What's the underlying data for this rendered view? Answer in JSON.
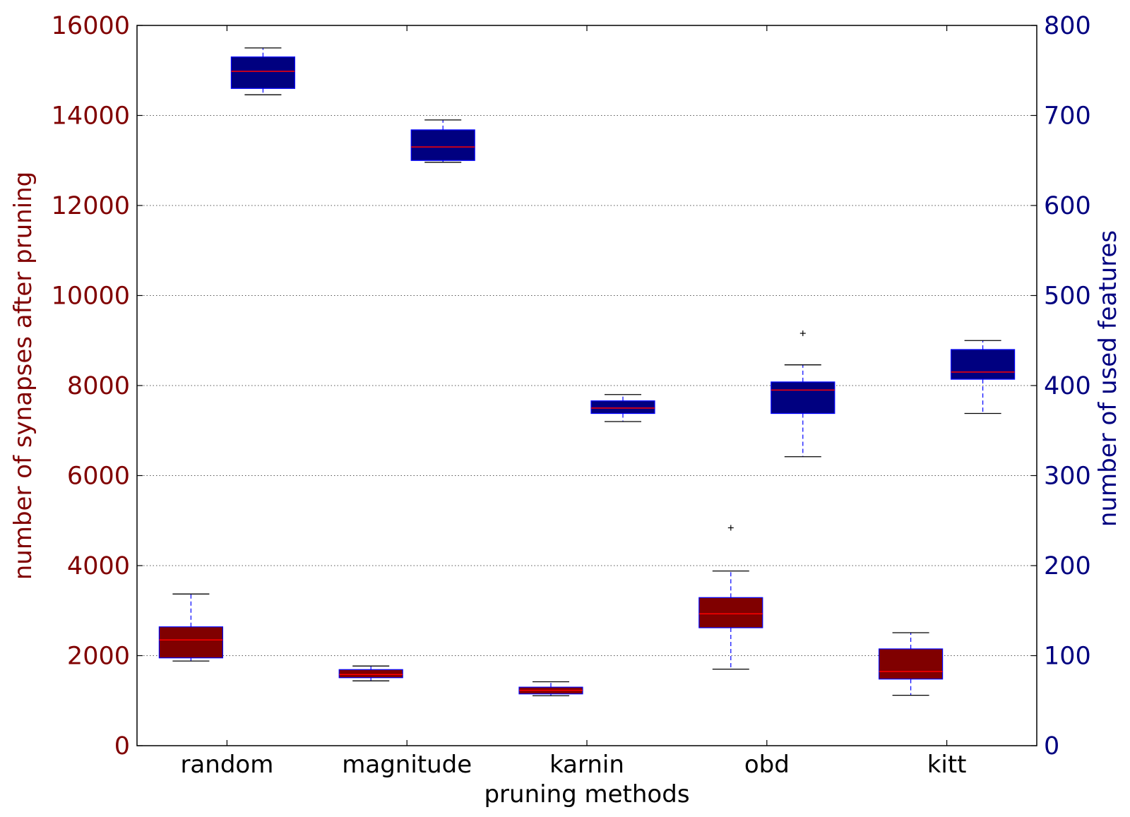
{
  "chart_data": {
    "type": "boxplot",
    "xlabel": "pruning methods",
    "ylabel_left": "number of synapses after pruning",
    "ylabel_right": "number of used features",
    "categories": [
      "random",
      "magnitude",
      "karnin",
      "obd",
      "kitt"
    ],
    "left_axis": {
      "range": [
        0,
        16000
      ],
      "ticks": [
        "0",
        "2000",
        "4000",
        "6000",
        "8000",
        "10000",
        "12000",
        "14000",
        "16000"
      ],
      "color": "#800000"
    },
    "right_axis": {
      "range": [
        0,
        800
      ],
      "ticks": [
        "0",
        "100",
        "200",
        "300",
        "400",
        "500",
        "600",
        "700",
        "800"
      ],
      "color": "#000080"
    },
    "grid": true,
    "series": [
      {
        "axis": "left",
        "box_color": "#800000",
        "boxes": [
          {
            "category": "random",
            "whisker_low": 1880,
            "q1": 1950,
            "median": 2350,
            "q3": 2640,
            "whisker_high": 3370,
            "outliers": []
          },
          {
            "category": "magnitude",
            "whisker_low": 1440,
            "q1": 1510,
            "median": 1580,
            "q3": 1690,
            "whisker_high": 1770,
            "outliers": []
          },
          {
            "category": "karnin",
            "whisker_low": 1110,
            "q1": 1150,
            "median": 1230,
            "q3": 1300,
            "whisker_high": 1420,
            "outliers": []
          },
          {
            "category": "obd",
            "whisker_low": 1700,
            "q1": 2620,
            "median": 2930,
            "q3": 3290,
            "whisker_high": 3880,
            "outliers": [
              4840
            ]
          },
          {
            "category": "kitt",
            "whisker_low": 1120,
            "q1": 1480,
            "median": 1650,
            "q3": 2150,
            "whisker_high": 2510,
            "outliers": []
          }
        ]
      },
      {
        "axis": "right",
        "box_color": "#000080",
        "boxes": [
          {
            "category": "random",
            "whisker_low": 723,
            "q1": 730,
            "median": 749,
            "q3": 765,
            "whisker_high": 775,
            "outliers": []
          },
          {
            "category": "magnitude",
            "whisker_low": 648,
            "q1": 650,
            "median": 665,
            "q3": 684,
            "whisker_high": 695,
            "outliers": []
          },
          {
            "category": "karnin",
            "whisker_low": 360,
            "q1": 369,
            "median": 375,
            "q3": 383,
            "whisker_high": 390,
            "outliers": []
          },
          {
            "category": "obd",
            "whisker_low": 321,
            "q1": 369,
            "median": 395,
            "q3": 404,
            "whisker_high": 423,
            "outliers": [
              458
            ]
          },
          {
            "category": "kitt",
            "whisker_low": 369,
            "q1": 407,
            "median": 415,
            "q3": 440,
            "whisker_high": 450,
            "outliers": []
          }
        ]
      }
    ]
  }
}
